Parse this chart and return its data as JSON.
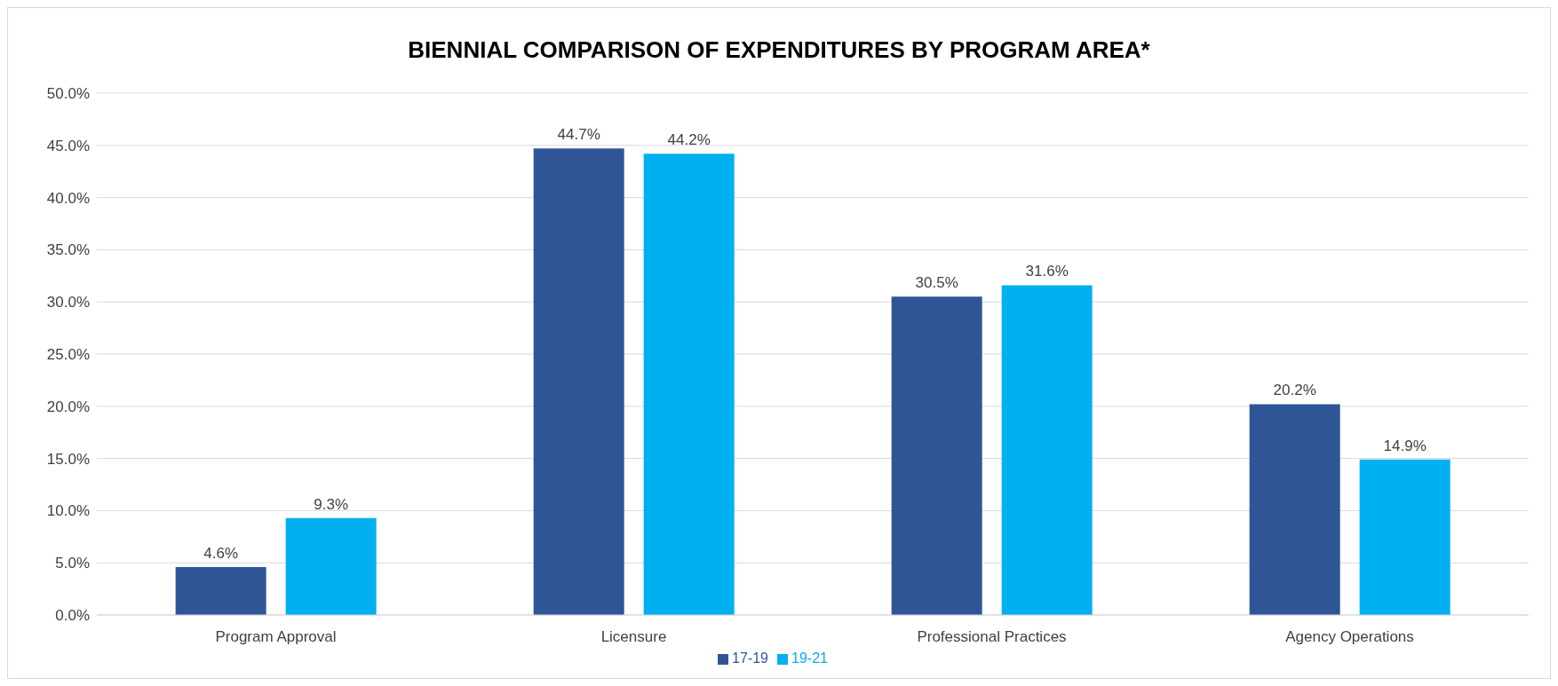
{
  "chart_data": {
    "type": "bar",
    "title": "BIENNIAL COMPARISON OF EXPENDITURES BY PROGRAM AREA*",
    "categories": [
      "Program Approval",
      "Licensure",
      "Professional Practices",
      "Agency Operations"
    ],
    "series": [
      {
        "name": "17-19",
        "color": "#2f5597",
        "values": [
          4.6,
          44.7,
          30.5,
          20.2
        ],
        "value_labels": [
          "4.6%",
          "44.7%",
          "30.5%",
          "20.2%"
        ]
      },
      {
        "name": "19-21",
        "color": "#00b0f0",
        "values": [
          9.3,
          44.2,
          31.6,
          14.9
        ],
        "value_labels": [
          "9.3%",
          "44.2%",
          "31.6%",
          "14.9%"
        ]
      }
    ],
    "ylim": [
      0,
      50
    ],
    "yticks": [
      {
        "value": 0,
        "label": "0.0%"
      },
      {
        "value": 5,
        "label": "5.0%"
      },
      {
        "value": 10,
        "label": "10.0%"
      },
      {
        "value": 15,
        "label": "15.0%"
      },
      {
        "value": 20,
        "label": "20.0%"
      },
      {
        "value": 25,
        "label": "25.0%"
      },
      {
        "value": 30,
        "label": "30.0%"
      },
      {
        "value": 35,
        "label": "35.0%"
      },
      {
        "value": 40,
        "label": "40.0%"
      },
      {
        "value": 45,
        "label": "45.0%"
      },
      {
        "value": 50,
        "label": "50.0%"
      }
    ],
    "grid": "y",
    "legend": "bottom"
  }
}
